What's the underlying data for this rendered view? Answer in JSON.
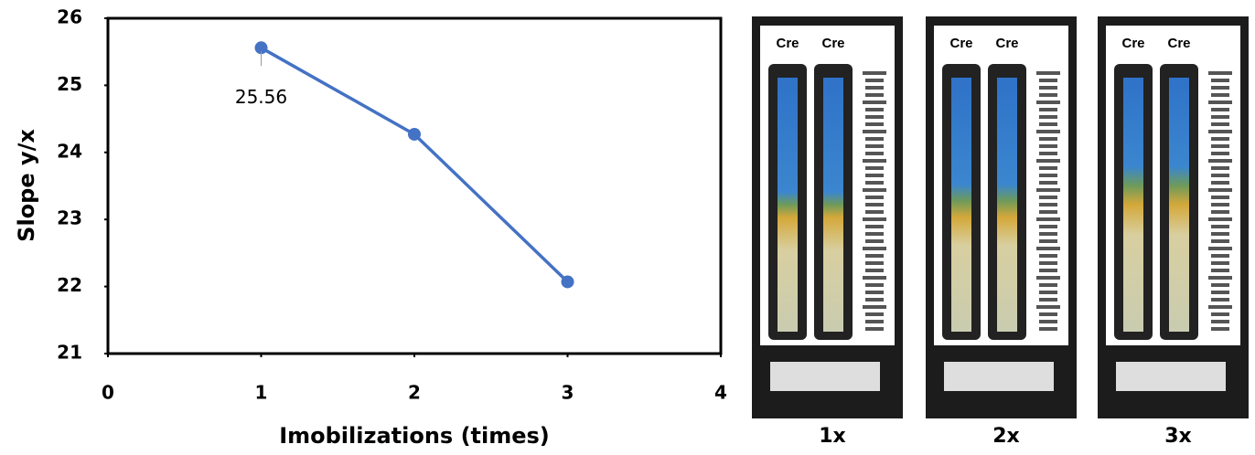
{
  "chart_data": {
    "type": "line",
    "x": [
      1,
      2,
      3
    ],
    "series": [
      {
        "color": "#4472c4",
        "values": [
          25.56,
          24.27,
          22.07
        ],
        "value_labels": [
          "25.56",
          null,
          null
        ]
      }
    ],
    "xlim": [
      0,
      4
    ],
    "xticks": [
      0,
      1,
      2,
      3,
      4
    ],
    "ylim": [
      21,
      26
    ],
    "yticks": [
      21,
      22,
      23,
      24,
      25,
      26
    ],
    "x_label": "Imobilizations (times)",
    "y_label": "Slope y/x"
  },
  "panels": [
    {
      "label": "1x",
      "strips": [
        "Cre",
        "Cre"
      ]
    },
    {
      "label": "2x",
      "strips": [
        "Cre",
        "Cre"
      ]
    },
    {
      "label": "3x",
      "strips": [
        "Cre",
        "Cre"
      ]
    }
  ]
}
